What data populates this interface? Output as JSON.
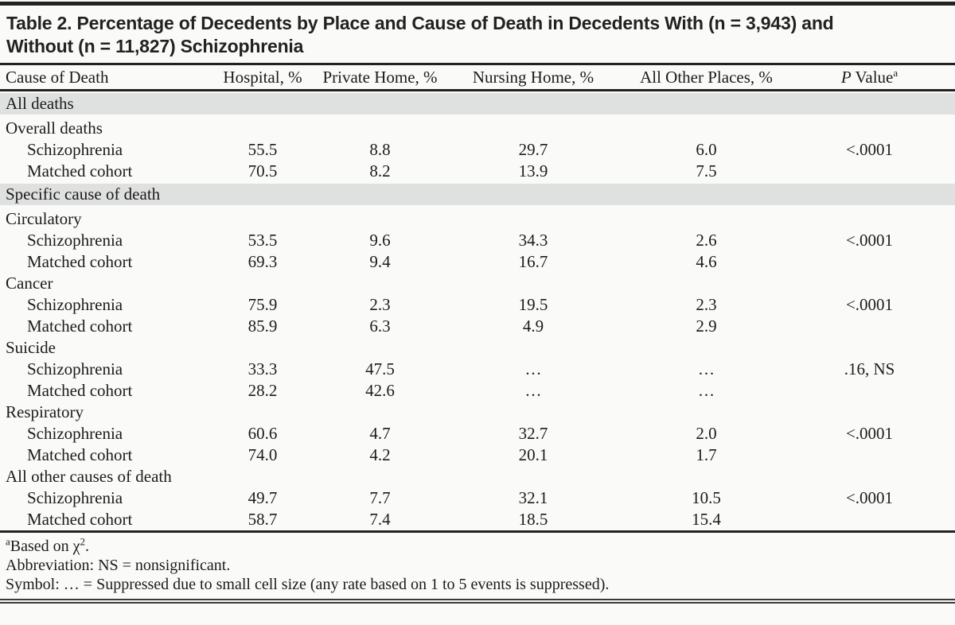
{
  "page": {
    "background_color": "#fafbf8",
    "band_color": "#dfe0e0",
    "rule_color": "#232221",
    "text_color": "#1c1b19"
  },
  "title": {
    "line1": "Table 2. Percentage of Decedents by Place and Cause of Death in Decedents With (n = 3,943) and",
    "line2": "Without (n = 11,827) Schizophrenia"
  },
  "table": {
    "columns": [
      "Cause of Death",
      "Hospital, %",
      "Private Home, %",
      "Nursing Home, %",
      "All Other Places, %"
    ],
    "p_header": {
      "italic": "P",
      "rest": " Value",
      "sup": "a"
    },
    "rows": [
      {
        "type": "band",
        "label": "All deaths"
      },
      {
        "type": "section",
        "label": "Overall deaths"
      },
      {
        "type": "data",
        "label": "Schizophrenia",
        "values": [
          "55.5",
          "8.8",
          "29.7",
          "6.0"
        ],
        "p": "<.0001"
      },
      {
        "type": "data",
        "label": "Matched cohort",
        "values": [
          "70.5",
          "8.2",
          "13.9",
          "7.5"
        ],
        "p": ""
      },
      {
        "type": "band",
        "label": "Specific cause of death"
      },
      {
        "type": "section",
        "label": "Circulatory"
      },
      {
        "type": "data",
        "label": "Schizophrenia",
        "values": [
          "53.5",
          "9.6",
          "34.3",
          "2.6"
        ],
        "p": "<.0001"
      },
      {
        "type": "data",
        "label": "Matched cohort",
        "values": [
          "69.3",
          "9.4",
          "16.7",
          "4.6"
        ],
        "p": ""
      },
      {
        "type": "section",
        "label": "Cancer"
      },
      {
        "type": "data",
        "label": "Schizophrenia",
        "values": [
          "75.9",
          "2.3",
          "19.5",
          "2.3"
        ],
        "p": "<.0001"
      },
      {
        "type": "data",
        "label": "Matched cohort",
        "values": [
          "85.9",
          "6.3",
          "4.9",
          "2.9"
        ],
        "p": ""
      },
      {
        "type": "section",
        "label": "Suicide"
      },
      {
        "type": "data",
        "label": "Schizophrenia",
        "values": [
          "33.3",
          "47.5",
          "…",
          "…"
        ],
        "p": ".16, NS"
      },
      {
        "type": "data",
        "label": "Matched cohort",
        "values": [
          "28.2",
          "42.6",
          "…",
          "…"
        ],
        "p": ""
      },
      {
        "type": "section",
        "label": "Respiratory"
      },
      {
        "type": "data",
        "label": "Schizophrenia",
        "values": [
          "60.6",
          "4.7",
          "32.7",
          "2.0"
        ],
        "p": "<.0001"
      },
      {
        "type": "data",
        "label": "Matched cohort",
        "values": [
          "74.0",
          "4.2",
          "20.1",
          "1.7"
        ],
        "p": ""
      },
      {
        "type": "section",
        "label": "All other causes of death"
      },
      {
        "type": "data",
        "label": "Schizophrenia",
        "values": [
          "49.7",
          "7.7",
          "32.1",
          "10.5"
        ],
        "p": "<.0001"
      },
      {
        "type": "data",
        "label": "Matched cohort",
        "values": [
          "58.7",
          "7.4",
          "18.5",
          "15.4"
        ],
        "p": ""
      }
    ]
  },
  "footnotes": {
    "fn1": {
      "sup1": "a",
      "text1": "Based on χ",
      "sup2": "2",
      "text2": "."
    },
    "fn2": "Abbreviation: NS = nonsignificant.",
    "fn3": "Symbol: … = Suppressed due to small cell size (any rate based on 1 to 5 events is suppressed)."
  }
}
